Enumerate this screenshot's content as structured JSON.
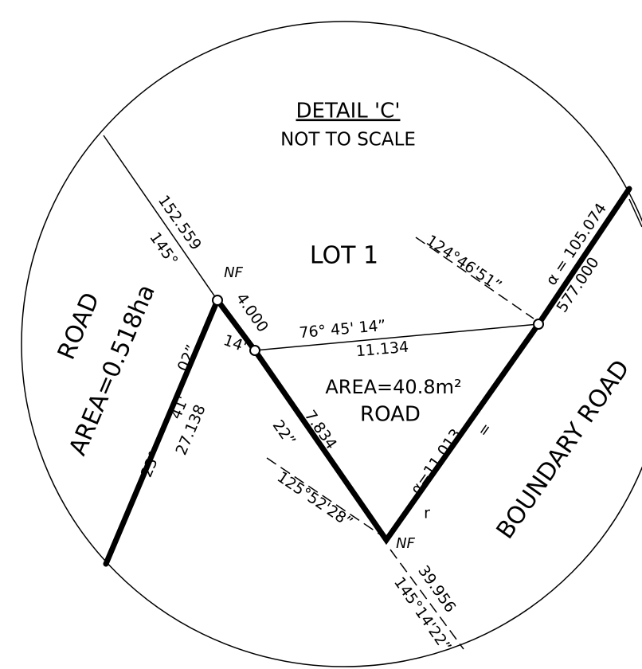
{
  "header": {
    "title": "DETAIL 'C'",
    "subtitle": "NOT TO SCALE"
  },
  "labels": {
    "lot": "LOT 1",
    "road_left": "ROAD",
    "area_left": "AREA=0.518ha",
    "area_mid": "AREA=40.8m²",
    "road_mid": "ROAD",
    "boundary_road": "BOUNDARY ROAD",
    "nf_top": "NF",
    "nf_bottom": "NF"
  },
  "dimensions": [
    "152.559",
    "145°",
    "4.000",
    "14'",
    "76° 45' 14”",
    "11.134",
    "124°46'51”",
    "α = 105.074",
    "577.000",
    "02”",
    "41'",
    "23°",
    "27.138",
    "22”",
    "7.834",
    "125°52'28”",
    "α=11.013",
    "=",
    "r",
    "39.956",
    "145°14'22”"
  ]
}
